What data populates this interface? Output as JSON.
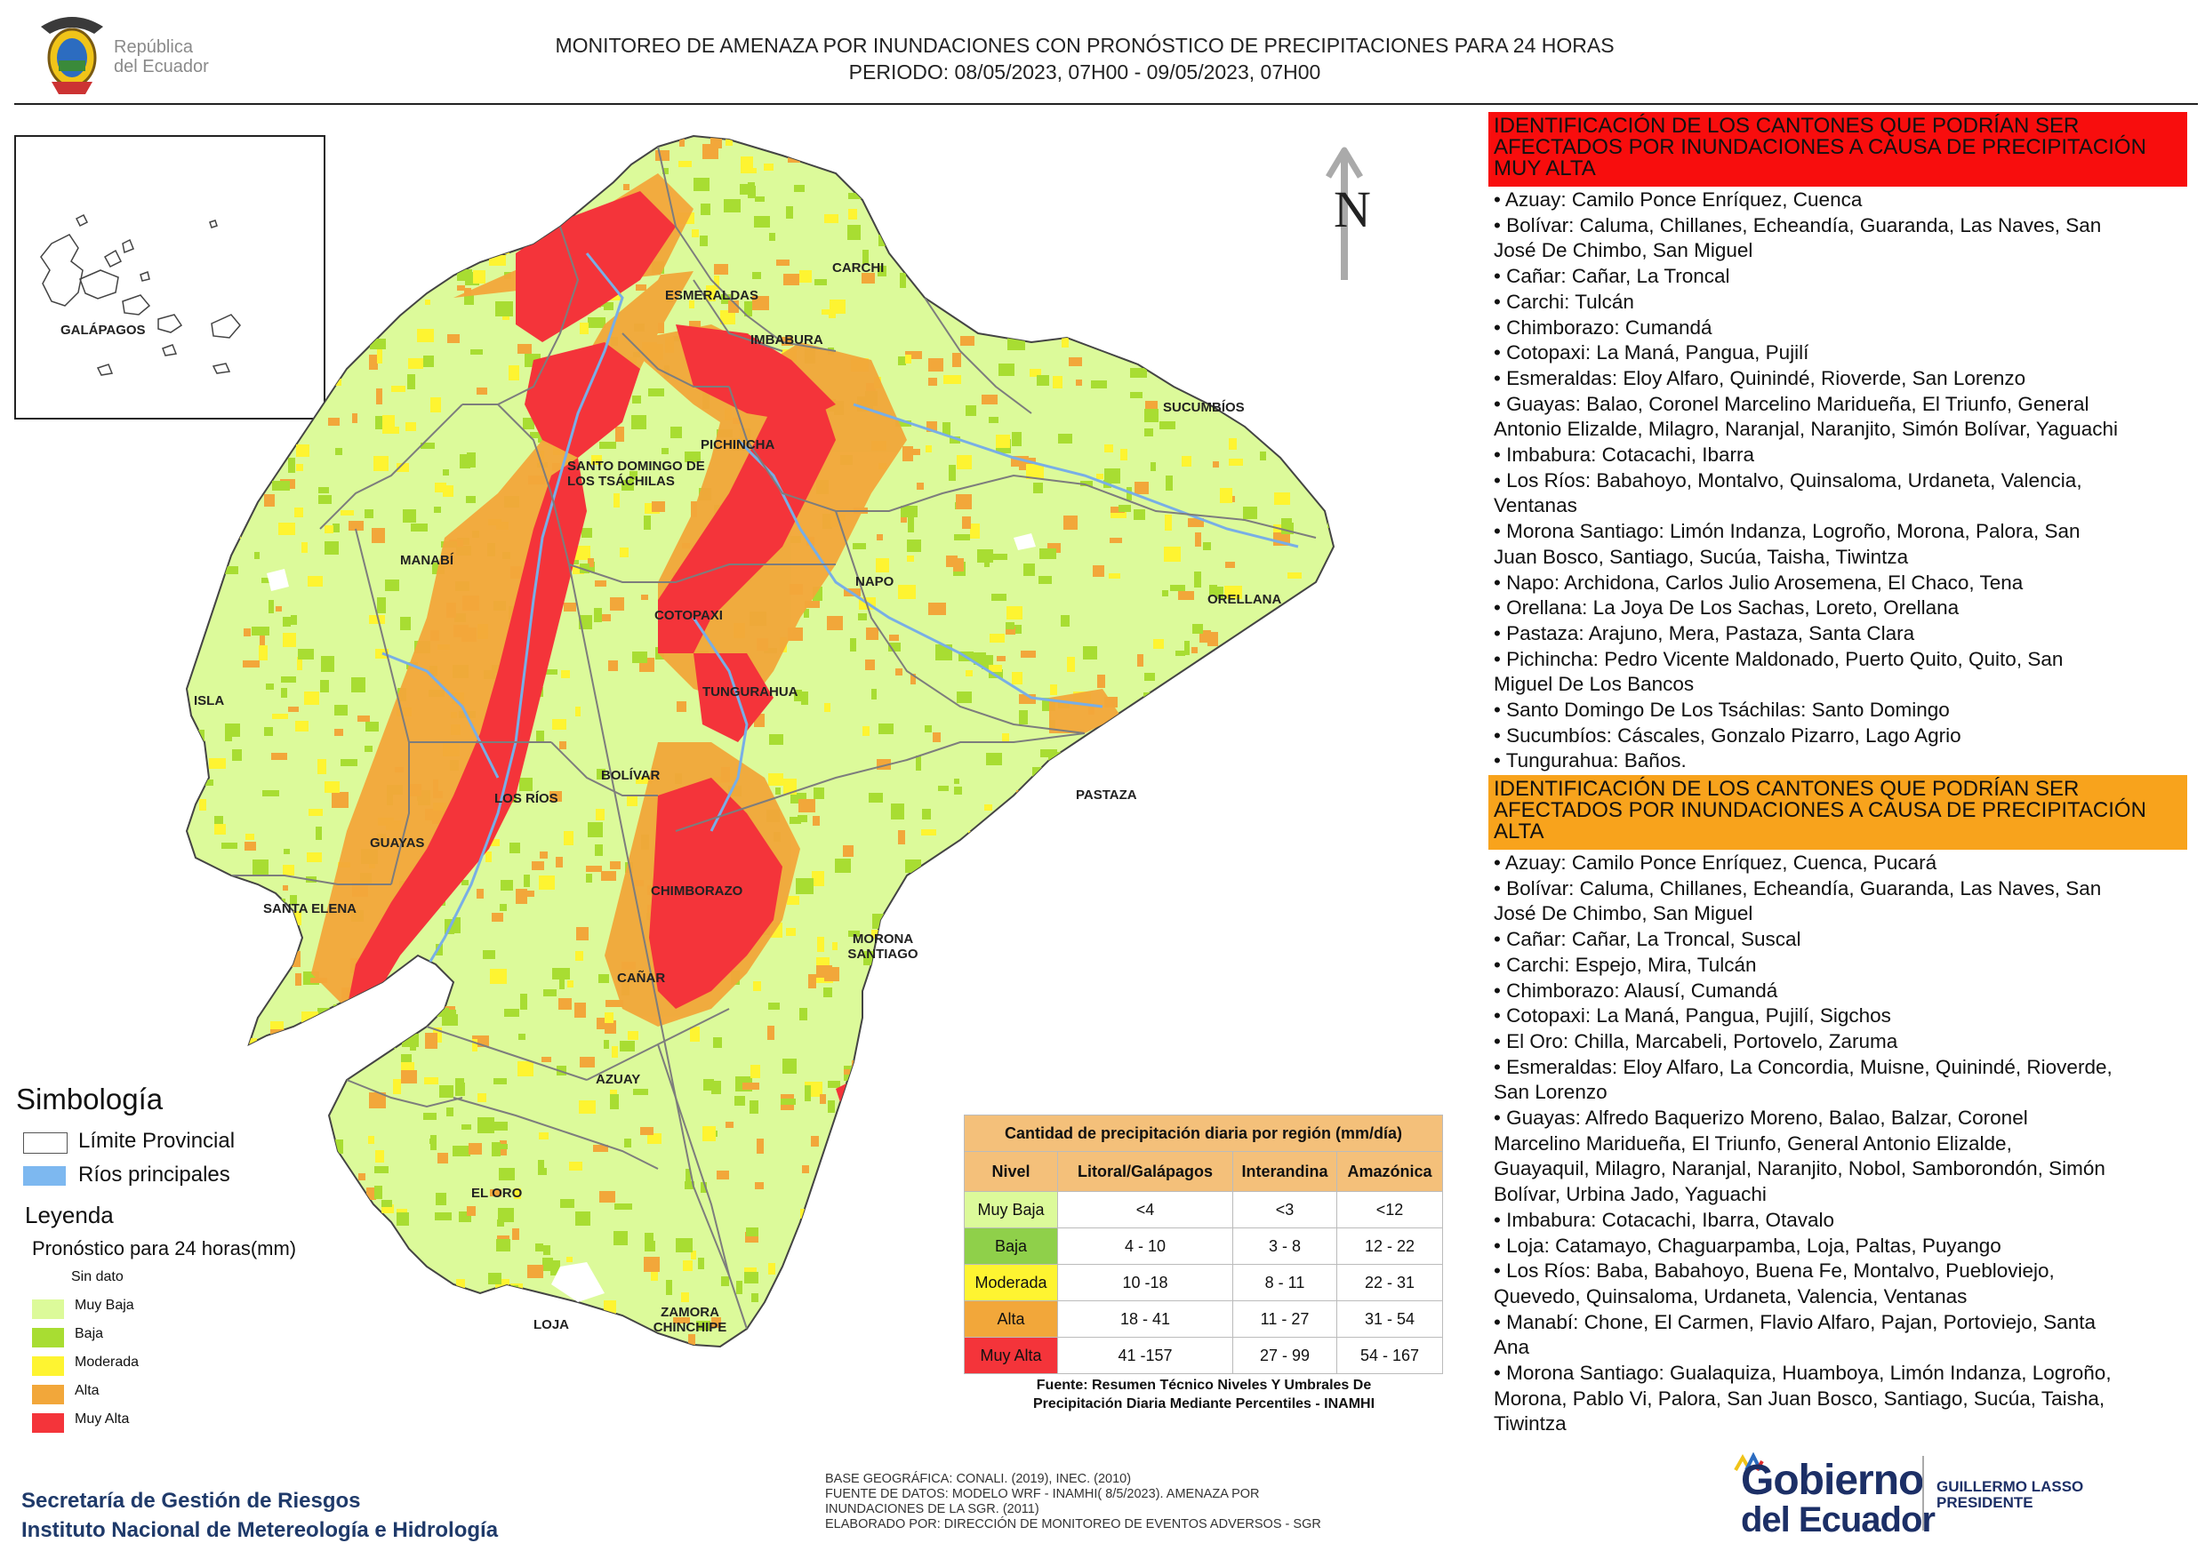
{
  "header": {
    "title_line1": "MONITOREO DE AMENAZA POR INUNDACIONES  CON PRONÓSTICO DE  PRECIPITACIONES PARA 24 HORAS",
    "title_line2": "PERIODO: 08/05/2023, 07H00 - 09/05/2023, 07H00",
    "logo_text_1": "República",
    "logo_text_2": "del Ecuador"
  },
  "map": {
    "north_label": "N",
    "provinces": [
      "CARCHI",
      "ESMERALDAS",
      "IMBABURA",
      "SUCUMBÍOS",
      "PICHINCHA",
      "SANTO DOMINGO DE LOS TSÁCHILAS",
      "MANABÍ",
      "NAPO",
      "ORELLANA",
      "COTOPAXI",
      "TUNGURAHUA",
      "ISLA",
      "BOLÍVAR",
      "LOS RÍOS",
      "PASTAZA",
      "GUAYAS",
      "CHIMBORAZO",
      "SANTA ELENA",
      "MORONA SANTIAGO",
      "CAÑAR",
      "AZUAY",
      "EL ORO",
      "ZAMORA CHINCHIPE",
      "LOJA"
    ],
    "inset_label": "GALÁPAGOS",
    "colors": {
      "muy_baja": "#dcfa9a",
      "baja": "#a8dd32",
      "moderada": "#fef431",
      "alta": "#f2a73a",
      "muy_alta": "#f4343a",
      "rivers": "#78aee6",
      "border": "#7d7d7d"
    }
  },
  "simbologia": {
    "title": "Simbología",
    "items": [
      {
        "label": "Límite Provincial",
        "color": "#ffffff"
      },
      {
        "label": "Ríos principales",
        "color": "#7db8f0"
      }
    ]
  },
  "leyenda": {
    "title": "Leyenda",
    "subtitle": "Pronóstico para 24 horas(mm)",
    "classes": [
      {
        "label": "Sin dato",
        "color": "#ffffff"
      },
      {
        "label": "Muy Baja",
        "color": "#dcfa9a"
      },
      {
        "label": "Baja",
        "color": "#a8dd32"
      },
      {
        "label": "Moderada",
        "color": "#fef431"
      },
      {
        "label": "Alta",
        "color": "#f2a73a"
      },
      {
        "label": "Muy Alta",
        "color": "#f4343a"
      }
    ]
  },
  "table": {
    "title": "Cantidad de precipitación diaria por región (mm/día)",
    "headers": [
      "Nivel",
      "Litoral/Galápagos",
      "Interandina",
      "Amazónica"
    ],
    "rows": [
      {
        "nivel": "Muy Baja",
        "litoral": "<4",
        "interandina": "<3",
        "amazonica": "<12",
        "color": "#dcfa9a"
      },
      {
        "nivel": "Baja",
        "litoral": "4 - 10",
        "interandina": "3 - 8",
        "amazonica": "12 - 22",
        "color": "#8fd04a"
      },
      {
        "nivel": "Moderada",
        "litoral": "10 -18",
        "interandina": "8 - 11",
        "amazonica": "22 - 31",
        "color": "#fef431"
      },
      {
        "nivel": "Alta",
        "litoral": "18 - 41",
        "interandina": "11 - 27",
        "amazonica": "31 - 54",
        "color": "#f2a73a"
      },
      {
        "nivel": "Muy Alta",
        "litoral": "41 -157",
        "interandina": "27 - 99",
        "amazonica": "54 - 167",
        "color": "#f4343a"
      }
    ],
    "source_line1": "Fuente: Resumen Técnico Niveles Y Umbrales De",
    "source_line2": "Precipitación Diaria Mediante Percentiles - INAMHI"
  },
  "muy_alta": {
    "heading": "IDENTIFICACIÓN DE LOS CANTONES QUE PODRÍAN SER AFECTADOS POR INUNDACIONES  A CAUSA DE PRECIPITACIÓN MUY ALTA",
    "lines": [
      "• Azuay: Camilo Ponce Enríquez, Cuenca",
      "• Bolívar: Caluma, Chillanes, Echeandía, Guaranda, Las Naves, San",
      "José De Chimbo, San Miguel",
      "• Cañar: Cañar, La Troncal",
      "• Carchi: Tulcán",
      "• Chimborazo: Cumandá",
      "• Cotopaxi: La Maná, Pangua, Pujilí",
      "• Esmeraldas: Eloy Alfaro, Quinindé, Rioverde, San Lorenzo",
      "• Guayas: Balao, Coronel Marcelino Maridueña, El Triunfo, General",
      "Antonio Elizalde, Milagro, Naranjal, Naranjito, Simón Bolívar, Yaguachi",
      "• Imbabura: Cotacachi, Ibarra",
      "• Los Ríos: Babahoyo, Montalvo, Quinsaloma, Urdaneta, Valencia,",
      "Ventanas",
      "• Morona Santiago: Limón Indanza, Logroño, Morona, Palora, San",
      "Juan Bosco, Santiago, Sucúa, Taisha, Tiwintza",
      "• Napo: Archidona, Carlos Julio Arosemena, El Chaco, Tena",
      "• Orellana: La Joya De Los Sachas, Loreto, Orellana",
      "• Pastaza: Arajuno, Mera, Pastaza, Santa Clara",
      "• Pichincha: Pedro Vicente Maldonado, Puerto Quito, Quito, San",
      "Miguel De Los Bancos",
      "• Santo Domingo De Los Tsáchilas: Santo Domingo",
      "• Sucumbíos: Cáscales, Gonzalo Pizarro, Lago Agrio",
      "• Tungurahua: Baños."
    ]
  },
  "alta": {
    "heading": "IDENTIFICACIÓN DE LOS CANTONES QUE  PODRÍAN SER AFECTADOS POR INUNDACIONES  A CAUSA DE PRECIPITACIÓN ALTA",
    "lines": [
      " • Azuay: Camilo Ponce Enríquez, Cuenca, Pucará",
      " • Bolívar: Caluma, Chillanes, Echeandía, Guaranda, Las Naves, San",
      "José De Chimbo, San Miguel",
      " • Cañar: Cañar, La Troncal, Suscal",
      " • Carchi: Espejo, Mira, Tulcán",
      " • Chimborazo: Alausí, Cumandá",
      " • Cotopaxi: La Maná, Pangua, Pujilí, Sigchos",
      " • El Oro: Chilla, Marcabeli, Portovelo, Zaruma",
      " • Esmeraldas: Eloy Alfaro, La Concordia, Muisne, Quinindé, Rioverde,",
      "San Lorenzo",
      " • Guayas: Alfredo Baquerizo Moreno, Balao, Balzar, Coronel",
      "Marcelino Maridueña, El Triunfo, General Antonio Elizalde,",
      "Guayaquil, Milagro, Naranjal, Naranjito, Nobol, Samborondón, Simón",
      "Bolívar, Urbina Jado, Yaguachi",
      " • Imbabura: Cotacachi, Ibarra, Otavalo",
      " • Loja: Catamayo, Chaguarpamba, Loja, Paltas, Puyango",
      " • Los Ríos: Baba, Babahoyo, Buena Fe, Montalvo, Puebloviejo,",
      "Quevedo, Quinsaloma, Urdaneta, Valencia, Ventanas",
      " • Manabí: Chone, El Carmen, Flavio Alfaro, Pajan, Portoviejo, Santa",
      "Ana",
      " • Morona Santiago: Gualaquiza, Huamboya, Limón Indanza, Logroño,",
      "Morona, Pablo Vi, Palora, San Juan Bosco, Santiago, Sucúa, Taisha,",
      "Tiwintza"
    ]
  },
  "footer": {
    "org_line1": "Secretaría de Gestión de Riesgos",
    "org_line2": "Instituto Nacional de Metereología e Hidrología",
    "credits": [
      "BASE GEOGRÁFICA: CONALI. (2019), INEC. (2010)",
      "FUENTE DE DATOS: MODELO WRF - INAMHI( 8/5/2023).  AMENAZA POR",
      "INUNDACIONES DE LA SGR. (2011)",
      "ELABORADO POR: DIRECCIÓN DE MONITOREO DE EVENTOS ADVERSOS - SGR"
    ],
    "gobierno_line1": "Gobierno",
    "gobierno_line2": "del Ecuador",
    "president_line1": "GUILLERMO LASSO",
    "president_line2": "PRESIDENTE"
  }
}
